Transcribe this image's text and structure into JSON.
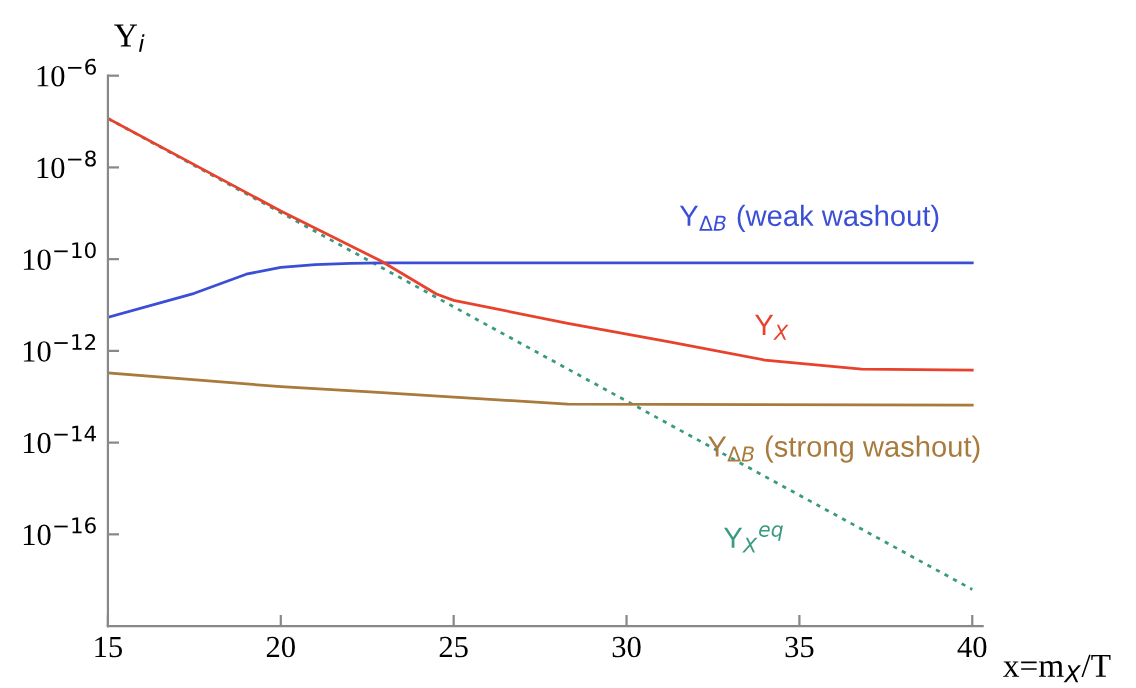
{
  "chart_data": {
    "type": "line",
    "xlabel": "x=m$_{X}$/T",
    "ylabel": "Y$_{i}$",
    "log": "y",
    "grid": false,
    "legend": false,
    "marker": "none",
    "xlim": [
      15,
      40.3
    ],
    "xticks": [
      15,
      20,
      25,
      30,
      35,
      40
    ],
    "ylim": [
      1e-18,
      1e-06
    ],
    "yticks": [
      {
        "value": 1e-06,
        "label": "10$^{−6}$"
      },
      {
        "value": 1e-08,
        "label": "10$^{−8}$"
      },
      {
        "value": 1e-10,
        "label": "10$^{−10}$"
      },
      {
        "value": 1e-12,
        "label": "10$^{−12}$"
      },
      {
        "value": 1e-14,
        "label": "10$^{−14}$"
      },
      {
        "value": 1e-16,
        "label": "10$^{−16}$"
      }
    ],
    "series": [
      {
        "name": "Y$_{X}$$^{eq}$",
        "color": "#3a9a80",
        "line_style": "dotted",
        "x": [
          15,
          40
        ],
        "values": [
          1.17e-07,
          6.3e-18
        ]
      },
      {
        "name": "Y$_{ΔB}$ (weak washout)",
        "color": "#3b4fd6",
        "line_style": "solid",
        "x": [
          15,
          17.5,
          19,
          20,
          21,
          22,
          23,
          40
        ],
        "values": [
          5.4e-12,
          1.8e-11,
          4.7e-11,
          6.6e-11,
          7.6e-11,
          8.1e-11,
          8.3e-11,
          8.3e-11
        ]
      },
      {
        "name": "Y$_{X}$",
        "color": "#e8412c",
        "line_style": "solid",
        "x": [
          15,
          20,
          22.9,
          24.5,
          25,
          28.3,
          31.2,
          34,
          36.8,
          40
        ],
        "values": [
          1.17e-07,
          1.12e-09,
          9.1e-11,
          1.74e-11,
          1.26e-11,
          4e-12,
          1.6e-12,
          6.3e-13,
          4e-13,
          3.8e-13
        ]
      },
      {
        "name": "Y$_{ΔB}$ (strong washout)",
        "color": "#a87a3c",
        "line_style": "solid",
        "x": [
          15,
          20,
          22.7,
          28.3,
          40
        ],
        "values": [
          3.3e-13,
          1.66e-13,
          1.26e-13,
          6.9e-14,
          6.6e-14
        ]
      }
    ]
  }
}
